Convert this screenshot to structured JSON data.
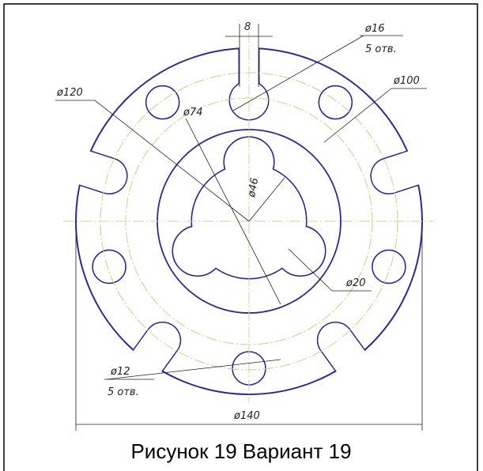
{
  "dimensions": {
    "slot_width": "8",
    "hole_top": "ø16",
    "hole_top_count": "5 отв.",
    "circle_100": "ø100",
    "circle_120": "ø120",
    "circle_74": "ø74",
    "circle_46": "ø46",
    "lobe_20": "ø20",
    "hole_bottom": "ø12",
    "hole_bottom_count": "5 отв.",
    "circle_140": "ø140"
  },
  "caption": "Рисунок 19 Вариант 19"
}
